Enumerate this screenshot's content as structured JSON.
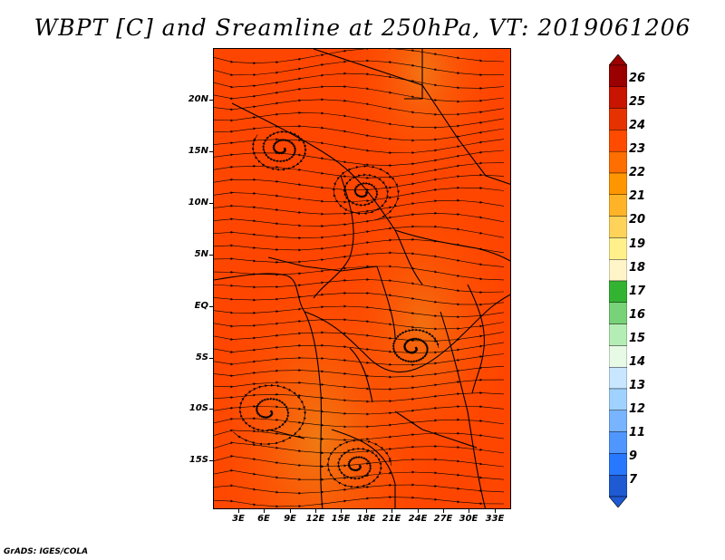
{
  "title": "WBPT [C] and Sreamline at 250hPa, VT: 2019061206",
  "footer": "GrADS: IGES/COLA",
  "map": {
    "lat_labels": [
      "20N",
      "15N",
      "10N",
      "5N",
      "EQ",
      "5S",
      "10S",
      "15S"
    ],
    "lon_labels": [
      "3E",
      "6E",
      "9E",
      "12E",
      "15E",
      "18E",
      "21E",
      "24E",
      "27E",
      "30E",
      "33E"
    ],
    "fill_colors": [
      "#ff4500",
      "#ff5a00",
      "#ff6e00",
      "#f47d10",
      "#ff3c00"
    ],
    "streamline_color": "#000000"
  },
  "colorbar": {
    "labels": [
      "26",
      "25",
      "24",
      "23",
      "22",
      "21",
      "20",
      "19",
      "18",
      "17",
      "16",
      "15",
      "14",
      "13",
      "12",
      "11",
      "9",
      "7"
    ],
    "colors": [
      "#9b0000",
      "#c81400",
      "#e63200",
      "#ff4b00",
      "#ff6e00",
      "#ff9600",
      "#ffb428",
      "#ffd25a",
      "#fff08c",
      "#fff5c8",
      "#32b432",
      "#78d278",
      "#b4eeb4",
      "#e6fae6",
      "#c8e6ff",
      "#a0d2ff",
      "#78b4ff",
      "#5096ff",
      "#2878ff",
      "#1e5ad2"
    ]
  }
}
